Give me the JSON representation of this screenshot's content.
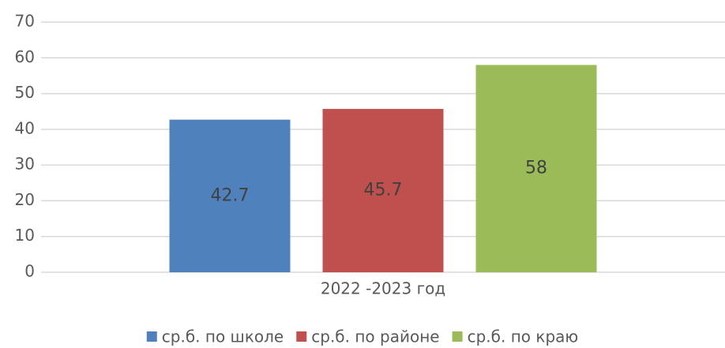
{
  "chart_data": {
    "type": "bar",
    "categories": [
      "2022 -2023 год"
    ],
    "series": [
      {
        "name": "ср.б. по школе",
        "color": "#4f81bd",
        "values": [
          42.7
        ]
      },
      {
        "name": "ср.б. по районе",
        "color": "#c0504d",
        "values": [
          45.7
        ]
      },
      {
        "name": "ср.б. по краю",
        "color": "#9bbb59",
        "values": [
          58
        ]
      }
    ],
    "ylim": [
      0,
      70
    ],
    "yticks": [
      0,
      10,
      20,
      30,
      40,
      50,
      60,
      70
    ],
    "grid": true,
    "legend": "bottom"
  }
}
